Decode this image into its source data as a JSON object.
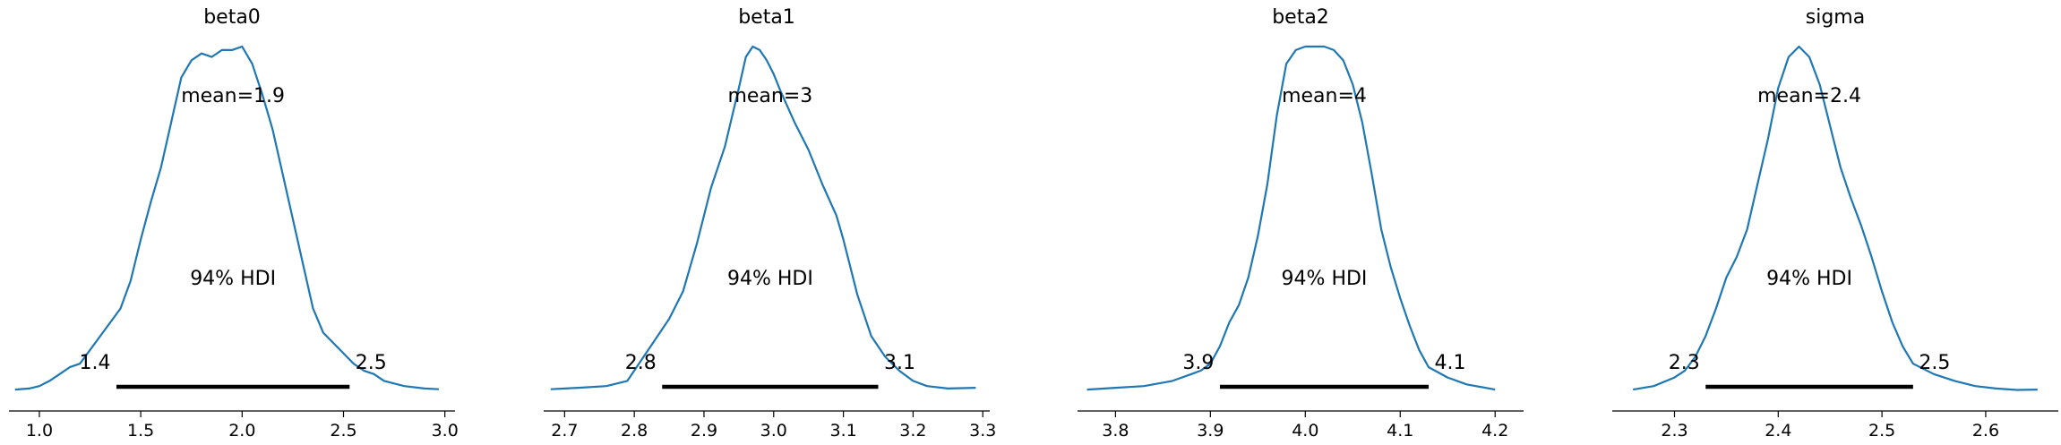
{
  "chart_data": [
    {
      "type": "line",
      "title": "beta0",
      "mean_label": "mean=1.9",
      "hdi_label": "94% HDI",
      "hdi": [
        1.38,
        2.53
      ],
      "hdi_low_label": "1.4",
      "hdi_high_label": "2.5",
      "xlim": [
        0.85,
        3.05
      ],
      "xticks": [
        1.0,
        1.5,
        2.0,
        2.5,
        3.0
      ],
      "xtick_labels": [
        "1.0",
        "1.5",
        "2.0",
        "2.5",
        "3.0"
      ],
      "ylim": [
        0,
        1.0
      ],
      "x": [
        0.88,
        0.95,
        1.0,
        1.05,
        1.1,
        1.15,
        1.2,
        1.3,
        1.4,
        1.45,
        1.5,
        1.55,
        1.6,
        1.65,
        1.7,
        1.75,
        1.8,
        1.85,
        1.9,
        1.95,
        2.0,
        2.05,
        2.1,
        2.15,
        2.2,
        2.25,
        2.3,
        2.35,
        2.4,
        2.45,
        2.5,
        2.55,
        2.6,
        2.65,
        2.7,
        2.8,
        2.9,
        2.97
      ],
      "y": [
        0.005,
        0.008,
        0.015,
        0.03,
        0.05,
        0.07,
        0.08,
        0.16,
        0.24,
        0.32,
        0.44,
        0.55,
        0.65,
        0.78,
        0.91,
        0.96,
        0.98,
        0.97,
        0.99,
        0.99,
        1.0,
        0.95,
        0.86,
        0.76,
        0.63,
        0.5,
        0.37,
        0.24,
        0.17,
        0.14,
        0.11,
        0.08,
        0.06,
        0.05,
        0.03,
        0.015,
        0.008,
        0.006
      ]
    },
    {
      "type": "line",
      "title": "beta1",
      "mean_label": "mean=3",
      "hdi_label": "94% HDI",
      "hdi": [
        2.84,
        3.15
      ],
      "hdi_low_label": "2.8",
      "hdi_high_label": "3.1",
      "xlim": [
        2.67,
        3.31
      ],
      "xticks": [
        2.7,
        2.8,
        2.9,
        3.0,
        3.1,
        3.2,
        3.3
      ],
      "xtick_labels": [
        "2.7",
        "2.8",
        "2.9",
        "3.0",
        "3.1",
        "3.2",
        "3.3"
      ],
      "ylim": [
        0,
        1.0
      ],
      "x": [
        2.68,
        2.72,
        2.76,
        2.79,
        2.81,
        2.83,
        2.85,
        2.87,
        2.89,
        2.91,
        2.93,
        2.95,
        2.96,
        2.97,
        2.98,
        2.99,
        3.0,
        3.01,
        3.03,
        3.05,
        3.07,
        3.09,
        3.1,
        3.12,
        3.14,
        3.16,
        3.18,
        3.2,
        3.22,
        3.25,
        3.29
      ],
      "y": [
        0.006,
        0.01,
        0.015,
        0.03,
        0.09,
        0.15,
        0.21,
        0.29,
        0.43,
        0.59,
        0.71,
        0.88,
        0.97,
        1.0,
        0.99,
        0.96,
        0.92,
        0.87,
        0.78,
        0.7,
        0.6,
        0.51,
        0.44,
        0.28,
        0.16,
        0.1,
        0.06,
        0.03,
        0.015,
        0.008,
        0.01
      ]
    },
    {
      "type": "line",
      "title": "beta2",
      "mean_label": "mean=4",
      "hdi_label": "94% HDI",
      "hdi": [
        3.91,
        4.13
      ],
      "hdi_low_label": "3.9",
      "hdi_high_label": "4.1",
      "xlim": [
        3.76,
        4.23
      ],
      "xticks": [
        3.8,
        3.9,
        4.0,
        4.1,
        4.2
      ],
      "xtick_labels": [
        "3.8",
        "3.9",
        "4.0",
        "4.1",
        "4.2"
      ],
      "ylim": [
        0,
        1.0
      ],
      "x": [
        3.77,
        3.8,
        3.83,
        3.86,
        3.88,
        3.89,
        3.9,
        3.91,
        3.92,
        3.93,
        3.94,
        3.95,
        3.96,
        3.97,
        3.98,
        3.99,
        4.0,
        4.01,
        4.02,
        4.03,
        4.04,
        4.05,
        4.06,
        4.07,
        4.08,
        4.09,
        4.1,
        4.11,
        4.12,
        4.13,
        4.15,
        4.17,
        4.2
      ],
      "y": [
        0.005,
        0.01,
        0.015,
        0.03,
        0.05,
        0.06,
        0.08,
        0.13,
        0.2,
        0.25,
        0.33,
        0.45,
        0.6,
        0.8,
        0.95,
        0.99,
        1.0,
        1.0,
        1.0,
        0.99,
        0.96,
        0.89,
        0.78,
        0.63,
        0.47,
        0.36,
        0.27,
        0.19,
        0.12,
        0.07,
        0.04,
        0.02,
        0.005
      ]
    },
    {
      "type": "line",
      "title": "sigma",
      "mean_label": "mean=2.4",
      "hdi_label": "94% HDI",
      "hdi": [
        2.33,
        2.53
      ],
      "hdi_low_label": "2.3",
      "hdi_high_label": "2.5",
      "xlim": [
        2.24,
        2.67
      ],
      "xticks": [
        2.3,
        2.4,
        2.5,
        2.6
      ],
      "xtick_labels": [
        "2.3",
        "2.4",
        "2.5",
        "2.6"
      ],
      "ylim": [
        0,
        1.0
      ],
      "x": [
        2.26,
        2.28,
        2.3,
        2.31,
        2.32,
        2.33,
        2.34,
        2.35,
        2.36,
        2.37,
        2.38,
        2.39,
        2.4,
        2.41,
        2.42,
        2.43,
        2.44,
        2.45,
        2.46,
        2.47,
        2.48,
        2.49,
        2.5,
        2.51,
        2.52,
        2.53,
        2.55,
        2.57,
        2.59,
        2.61,
        2.63,
        2.65
      ],
      "y": [
        0.005,
        0.015,
        0.04,
        0.06,
        0.1,
        0.16,
        0.24,
        0.33,
        0.39,
        0.47,
        0.6,
        0.73,
        0.88,
        0.97,
        1.0,
        0.97,
        0.89,
        0.77,
        0.65,
        0.56,
        0.48,
        0.39,
        0.29,
        0.2,
        0.13,
        0.08,
        0.05,
        0.03,
        0.015,
        0.008,
        0.004,
        0.005
      ]
    }
  ],
  "colors": {
    "kde": "#1f77b4",
    "hdi": "#000000",
    "axis": "#000000"
  }
}
